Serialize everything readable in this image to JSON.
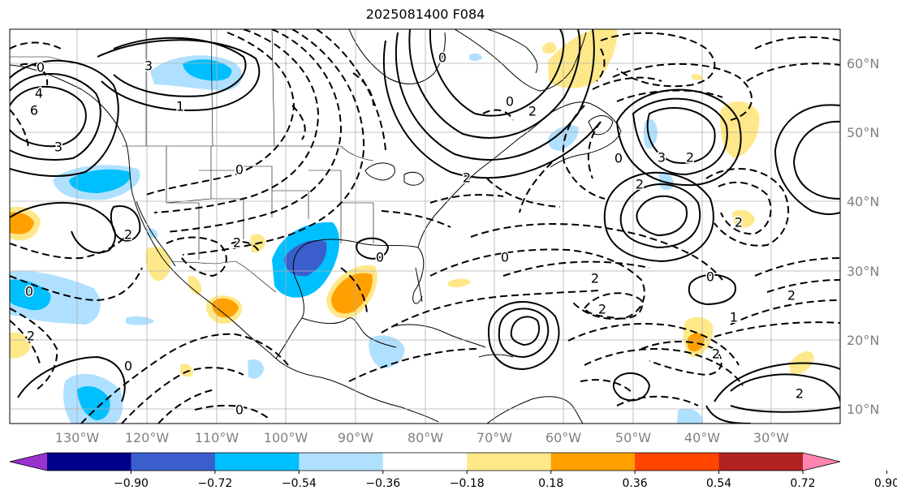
{
  "title": "2025081400 F084",
  "map": {
    "lon_labels": [
      "130°W",
      "120°W",
      "110°W",
      "100°W",
      "90°W",
      "80°W",
      "70°W",
      "60°W",
      "50°W",
      "40°W",
      "30°W"
    ],
    "lat_labels": [
      "60°N",
      "50°N",
      "40°N",
      "30°N",
      "20°N",
      "10°N"
    ],
    "contour_labels": [
      "0",
      "3",
      "6",
      "4",
      "3",
      "1",
      "0",
      "2",
      "0",
      "0",
      "2",
      "2",
      "0",
      "2",
      "0",
      "2",
      "2",
      "3",
      "2",
      "2",
      "0",
      "1",
      "2",
      "2",
      "0",
      "0",
      "0",
      "0",
      "2",
      "2",
      "2"
    ]
  },
  "colorbar": {
    "colors": [
      "#9932cc",
      "#00008b",
      "#3a5fcd",
      "#00bfff",
      "#b0e0ff",
      "#ffffff",
      "#ffe88a",
      "#ffa000",
      "#ff4500",
      "#b22222",
      "#ff85b0"
    ],
    "tick_labels": [
      "−0.90",
      "−0.72",
      "−0.54",
      "−0.36",
      "−0.18",
      "0.18",
      "0.36",
      "0.54",
      "0.72",
      "0.90"
    ]
  }
}
